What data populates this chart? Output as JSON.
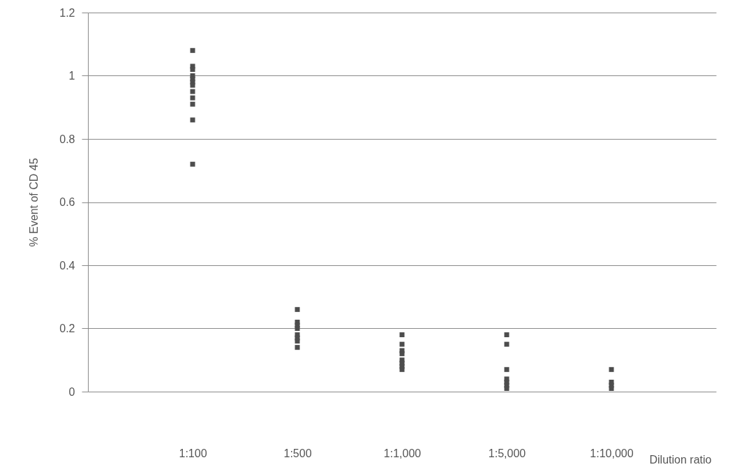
{
  "chart_data": {
    "type": "scatter",
    "ylabel": "% Event of CD 45",
    "xlabel": "Dilution ratio",
    "categories": [
      "1:100",
      "1:500",
      "1:1,000",
      "1:5,000",
      "1:10,000"
    ],
    "series": [
      {
        "color": "#4d4d4d",
        "x": [
          "1:100",
          "1:100",
          "1:100",
          "1:100",
          "1:100",
          "1:100",
          "1:100",
          "1:100",
          "1:100",
          "1:100",
          "1:100",
          "1:100",
          "1:500",
          "1:500",
          "1:500",
          "1:500",
          "1:500",
          "1:500",
          "1:500",
          "1:500",
          "1:1,000",
          "1:1,000",
          "1:1,000",
          "1:1,000",
          "1:1,000",
          "1:1,000",
          "1:1,000",
          "1:1,000",
          "1:5,000",
          "1:5,000",
          "1:5,000",
          "1:5,000",
          "1:5,000",
          "1:5,000",
          "1:5,000",
          "1:10,000",
          "1:10,000",
          "1:10,000",
          "1:10,000"
        ],
        "values": [
          1.08,
          1.03,
          1.02,
          1.0,
          0.99,
          0.98,
          0.97,
          0.95,
          0.93,
          0.91,
          0.86,
          0.72,
          0.26,
          0.22,
          0.21,
          0.2,
          0.18,
          0.17,
          0.16,
          0.14,
          0.18,
          0.15,
          0.13,
          0.12,
          0.1,
          0.09,
          0.08,
          0.07,
          0.18,
          0.15,
          0.07,
          0.04,
          0.03,
          0.02,
          0.01,
          0.07,
          0.03,
          0.02,
          0.01
        ]
      }
    ],
    "ylim": [
      0,
      1.2
    ],
    "yticks": [
      0,
      0.2,
      0.4,
      0.6,
      0.8,
      1,
      1.2
    ],
    "grid": "y",
    "marker": "square"
  }
}
